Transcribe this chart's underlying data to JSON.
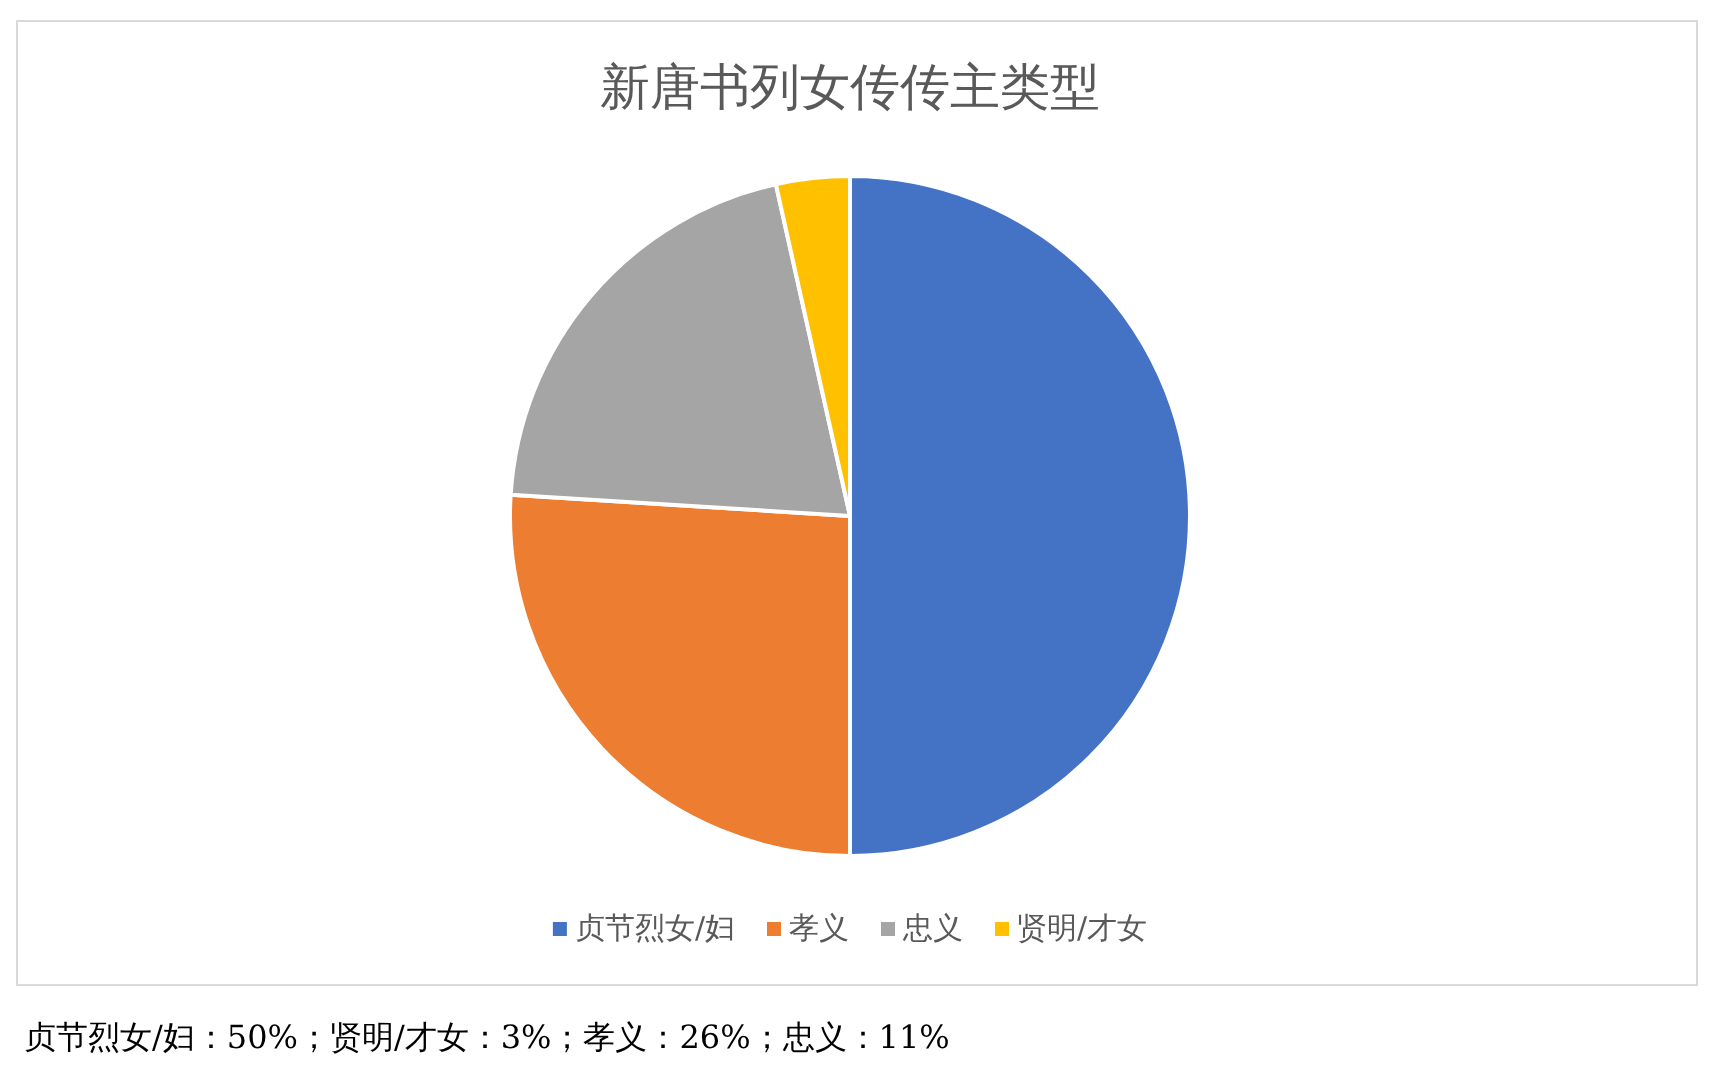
{
  "chart_data": {
    "type": "pie",
    "title": "新唐书列女传传主类型",
    "categories": [
      "贞节烈女/妇",
      "孝义",
      "忠义",
      "贤明/才女"
    ],
    "values": [
      50,
      26,
      20.5,
      3.5
    ],
    "colors": [
      "#4472c4",
      "#ed7d31",
      "#a5a5a5",
      "#ffc000"
    ],
    "legend": "bottom",
    "annotations": [
      "贞节烈女/妇：50%；贤明/才女：3%；孝义：26%；忠义：11%"
    ]
  }
}
